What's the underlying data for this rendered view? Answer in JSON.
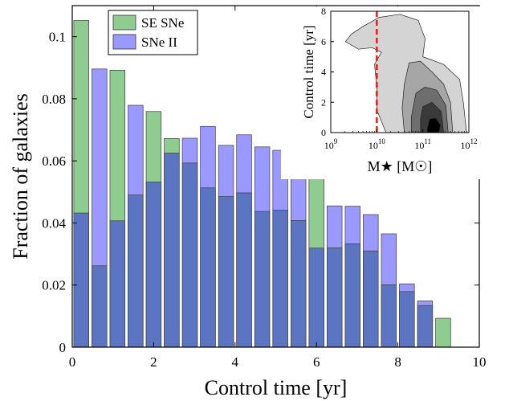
{
  "chart_data": [
    {
      "type": "bar",
      "xlabel": "Control time [yr]",
      "ylabel": "Fraction of galaxies",
      "xlim": [
        0,
        10
      ],
      "ylim": [
        0,
        0.11
      ],
      "xticks": [
        "0",
        "2",
        "4",
        "6",
        "8",
        "10"
      ],
      "yticks": [
        "0",
        "0.02",
        "0.04",
        "0.06",
        "0.08",
        "0.1"
      ],
      "legend_position": "top-left",
      "bin_width_yr": 0.444,
      "x": [
        0.222,
        0.667,
        1.111,
        1.556,
        2.0,
        2.444,
        2.889,
        3.333,
        3.778,
        4.222,
        4.667,
        5.111,
        5.556,
        6.0,
        6.444,
        6.889,
        7.333,
        7.778,
        8.222,
        8.667,
        9.111,
        9.556
      ],
      "series": [
        {
          "name": "SE SNe",
          "color": "#8fcc8f",
          "values": [
            0.1052,
            0.0262,
            0.0892,
            0.049,
            0.0759,
            0.0672,
            0.0593,
            0.0513,
            0.0485,
            0.0497,
            0.0437,
            0.0441,
            0.0408,
            0.0598,
            0.032,
            0.0333,
            0.031,
            0.0201,
            0.0179,
            0.0134,
            0.0093,
            0.0
          ]
        },
        {
          "name": "SNe II",
          "color": "#9999ff",
          "values": [
            0.0432,
            0.0896,
            0.0407,
            0.0779,
            0.0532,
            0.0625,
            0.0673,
            0.0711,
            0.065,
            0.0684,
            0.0645,
            0.0634,
            0.0597,
            0.0319,
            0.0455,
            0.0454,
            0.0427,
            0.0365,
            0.0204,
            0.0149,
            0.0,
            0.0
          ]
        }
      ]
    },
    {
      "type": "contour",
      "xlabel": "M★ [M☉]",
      "ylabel": "Control time [yr]",
      "xscale": "log",
      "xlim": [
        1000000000.0,
        1000000000000.0
      ],
      "ylim": [
        0,
        8
      ],
      "xticks": [
        "10^9",
        "10^10",
        "10^11",
        "10^12"
      ],
      "yticks": [
        "0",
        "2",
        "4",
        "6",
        "8"
      ],
      "vertical_line": {
        "x": 10000000000.0,
        "color": "#e0201b",
        "style": "dashed"
      },
      "levels": [
        {
          "fill": "#d4d4d4",
          "polygon": [
            [
              9.32,
              6.0
            ],
            [
              9.45,
              6.5
            ],
            [
              9.7,
              7.0
            ],
            [
              10.05,
              7.6
            ],
            [
              10.5,
              7.8
            ],
            [
              10.9,
              7.4
            ],
            [
              11.05,
              6.2
            ],
            [
              11.0,
              5.0
            ],
            [
              11.45,
              4.5
            ],
            [
              11.8,
              3.5
            ],
            [
              11.88,
              2.0
            ],
            [
              11.95,
              0
            ],
            [
              10.2,
              0
            ],
            [
              10.0,
              1.5
            ],
            [
              10.0,
              3.0
            ],
            [
              9.95,
              4.5
            ],
            [
              10.1,
              5.3
            ],
            [
              9.9,
              5.6
            ],
            [
              9.6,
              5.5
            ]
          ]
        },
        {
          "fill": "#a6a6a6",
          "polygon": [
            [
              10.55,
              1.6
            ],
            [
              10.6,
              3.2
            ],
            [
              10.7,
              4.6
            ],
            [
              10.95,
              4.7
            ],
            [
              11.2,
              4.0
            ],
            [
              11.45,
              3.2
            ],
            [
              11.6,
              2.0
            ],
            [
              11.65,
              0
            ],
            [
              10.6,
              0
            ]
          ]
        },
        {
          "fill": "#6e6e6e",
          "polygon": [
            [
              10.75,
              1.0
            ],
            [
              10.85,
              2.6
            ],
            [
              11.05,
              3.0
            ],
            [
              11.3,
              2.8
            ],
            [
              11.5,
              1.8
            ],
            [
              11.55,
              0
            ],
            [
              10.75,
              0
            ]
          ]
        },
        {
          "fill": "#3a3a3a",
          "polygon": [
            [
              10.95,
              0.9
            ],
            [
              11.0,
              1.7
            ],
            [
              11.2,
              2.0
            ],
            [
              11.4,
              1.4
            ],
            [
              11.45,
              0
            ],
            [
              10.95,
              0
            ]
          ]
        },
        {
          "fill": "#000000",
          "polygon": [
            [
              11.1,
              0.3
            ],
            [
              11.15,
              0.9
            ],
            [
              11.28,
              0.95
            ],
            [
              11.38,
              0.5
            ],
            [
              11.35,
              0
            ],
            [
              11.1,
              0
            ]
          ]
        }
      ]
    }
  ]
}
